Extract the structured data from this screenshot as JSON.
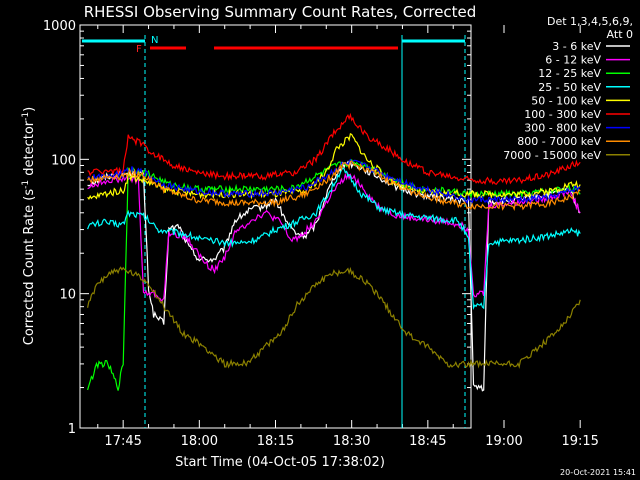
{
  "chart_data": {
    "type": "line",
    "title": "RHESSI Observing Summary Count Rates, Corrected",
    "xlabel": "Start Time (04-Oct-05 17:38:02)",
    "ylabel_main": "Corrected Count Rate (s",
    "ylabel_sup1": "-1",
    "ylabel_mid": " detector",
    "ylabel_sup2": "-1",
    "ylabel_end": ")",
    "yscale": "log",
    "ylim": [
      1,
      1000
    ],
    "xlim_minutes": [
      -8.5,
      68.5
    ],
    "x_ticks": [
      {
        "label": "17:45",
        "min": 0
      },
      {
        "label": "18:00",
        "min": 15
      },
      {
        "label": "18:15",
        "min": 30
      },
      {
        "label": "18:30",
        "min": 45
      },
      {
        "label": "18:45",
        "min": 60
      },
      {
        "label": "19:00",
        "min": 75
      },
      {
        "label": "19:15",
        "min": 90
      }
    ],
    "y_ticks": [
      {
        "label": "1",
        "value": 1
      },
      {
        "label": "10",
        "value": 10
      },
      {
        "label": "100",
        "value": 100
      },
      {
        "label": "1000",
        "value": 1000
      }
    ],
    "legend_header": [
      "Det 1,3,4,5,6,9,",
      "Att 0"
    ],
    "series": [
      {
        "name": "3 - 6 keV",
        "color": "#ffffff",
        "points": [
          [
            -7,
            65
          ],
          [
            -3,
            75
          ],
          [
            0,
            78
          ],
          [
            4,
            78
          ],
          [
            5,
            11
          ],
          [
            6,
            7
          ],
          [
            8,
            6
          ],
          [
            9,
            30
          ],
          [
            11,
            32
          ],
          [
            13,
            22
          ],
          [
            15,
            18
          ],
          [
            18,
            18
          ],
          [
            20,
            22
          ],
          [
            22,
            35
          ],
          [
            25,
            42
          ],
          [
            28,
            45
          ],
          [
            30,
            50
          ],
          [
            32,
            35
          ],
          [
            34,
            28
          ],
          [
            36,
            27
          ],
          [
            38,
            33
          ],
          [
            40,
            55
          ],
          [
            42,
            80
          ],
          [
            44,
            95
          ],
          [
            46,
            90
          ],
          [
            50,
            75
          ],
          [
            54,
            62
          ],
          [
            58,
            55
          ],
          [
            62,
            52
          ],
          [
            66,
            50
          ],
          [
            68,
            48
          ],
          [
            69,
            2
          ],
          [
            71,
            2
          ],
          [
            72,
            48
          ],
          [
            78,
            50
          ],
          [
            84,
            55
          ],
          [
            88,
            60
          ],
          [
            90,
            40
          ]
        ]
      },
      {
        "name": "6 - 12 keV",
        "color": "#ff00ff",
        "points": [
          [
            -7,
            62
          ],
          [
            -3,
            70
          ],
          [
            0,
            72
          ],
          [
            3,
            70
          ],
          [
            4,
            10
          ],
          [
            6,
            10
          ],
          [
            8,
            9
          ],
          [
            9,
            28
          ],
          [
            12,
            27
          ],
          [
            14,
            22
          ],
          [
            16,
            17
          ],
          [
            18,
            15
          ],
          [
            20,
            19
          ],
          [
            22,
            28
          ],
          [
            25,
            35
          ],
          [
            28,
            40
          ],
          [
            31,
            34
          ],
          [
            33,
            25
          ],
          [
            35,
            27
          ],
          [
            38,
            35
          ],
          [
            41,
            55
          ],
          [
            44,
            75
          ],
          [
            46,
            70
          ],
          [
            50,
            45
          ],
          [
            54,
            38
          ],
          [
            58,
            36
          ],
          [
            62,
            35
          ],
          [
            66,
            33
          ],
          [
            68,
            30
          ],
          [
            69,
            10
          ],
          [
            71,
            10
          ],
          [
            72,
            45
          ],
          [
            78,
            48
          ],
          [
            84,
            52
          ],
          [
            88,
            58
          ],
          [
            90,
            40
          ]
        ]
      },
      {
        "name": "12 - 25 keV",
        "color": "#00ff00",
        "points": [
          [
            -7,
            2
          ],
          [
            -5,
            3
          ],
          [
            -3,
            3
          ],
          [
            -1,
            2
          ],
          [
            0,
            3
          ],
          [
            1,
            85
          ],
          [
            5,
            78
          ],
          [
            9,
            65
          ],
          [
            15,
            60
          ],
          [
            25,
            60
          ],
          [
            33,
            60
          ],
          [
            38,
            75
          ],
          [
            42,
            90
          ],
          [
            45,
            95
          ],
          [
            48,
            90
          ],
          [
            52,
            75
          ],
          [
            58,
            60
          ],
          [
            64,
            58
          ],
          [
            68,
            55
          ],
          [
            72,
            55
          ],
          [
            78,
            55
          ],
          [
            84,
            58
          ],
          [
            88,
            62
          ],
          [
            90,
            55
          ]
        ]
      },
      {
        "name": "25 - 50 keV",
        "color": "#00ffff",
        "points": [
          [
            -7,
            32
          ],
          [
            -4,
            34
          ],
          [
            -1,
            33
          ],
          [
            0,
            33
          ],
          [
            1,
            40
          ],
          [
            4,
            38
          ],
          [
            7,
            30
          ],
          [
            12,
            28
          ],
          [
            16,
            25
          ],
          [
            20,
            24
          ],
          [
            24,
            24
          ],
          [
            27,
            26
          ],
          [
            30,
            30
          ],
          [
            34,
            34
          ],
          [
            38,
            40
          ],
          [
            41,
            60
          ],
          [
            43,
            85
          ],
          [
            45,
            70
          ],
          [
            47,
            55
          ],
          [
            51,
            42
          ],
          [
            56,
            38
          ],
          [
            62,
            36
          ],
          [
            66,
            35
          ],
          [
            68,
            25
          ],
          [
            69,
            8
          ],
          [
            71,
            8
          ],
          [
            72,
            24
          ],
          [
            78,
            25
          ],
          [
            84,
            27
          ],
          [
            88,
            29
          ],
          [
            90,
            28
          ]
        ]
      },
      {
        "name": "50 - 100 keV",
        "color": "#ffff00",
        "points": [
          [
            -7,
            50
          ],
          [
            -4,
            55
          ],
          [
            -1,
            58
          ],
          [
            0,
            58
          ],
          [
            1,
            75
          ],
          [
            4,
            70
          ],
          [
            8,
            60
          ],
          [
            14,
            55
          ],
          [
            22,
            55
          ],
          [
            30,
            55
          ],
          [
            36,
            58
          ],
          [
            40,
            80
          ],
          [
            42,
            120
          ],
          [
            44,
            140
          ],
          [
            45,
            150
          ],
          [
            46,
            130
          ],
          [
            48,
            100
          ],
          [
            50,
            85
          ],
          [
            54,
            65
          ],
          [
            58,
            58
          ],
          [
            64,
            56
          ],
          [
            68,
            55
          ],
          [
            72,
            55
          ],
          [
            78,
            55
          ],
          [
            84,
            58
          ],
          [
            88,
            65
          ],
          [
            90,
            65
          ]
        ]
      },
      {
        "name": "100 - 300 keV",
        "color": "#ff0000",
        "points": [
          [
            -7,
            80
          ],
          [
            -4,
            82
          ],
          [
            -1,
            82
          ],
          [
            0,
            82
          ],
          [
            1,
            145
          ],
          [
            3,
            135
          ],
          [
            6,
            110
          ],
          [
            10,
            90
          ],
          [
            14,
            80
          ],
          [
            20,
            75
          ],
          [
            28,
            75
          ],
          [
            34,
            80
          ],
          [
            38,
            100
          ],
          [
            41,
            150
          ],
          [
            44,
            200
          ],
          [
            45,
            205
          ],
          [
            46,
            180
          ],
          [
            48,
            150
          ],
          [
            52,
            120
          ],
          [
            56,
            95
          ],
          [
            60,
            80
          ],
          [
            66,
            72
          ],
          [
            70,
            70
          ],
          [
            74,
            68
          ],
          [
            78,
            70
          ],
          [
            84,
            78
          ],
          [
            88,
            90
          ],
          [
            90,
            95
          ]
        ]
      },
      {
        "name": "300 - 800 keV",
        "color": "#0000ff",
        "points": [
          [
            -7,
            72
          ],
          [
            -4,
            75
          ],
          [
            -1,
            78
          ],
          [
            0,
            78
          ],
          [
            1,
            85
          ],
          [
            4,
            80
          ],
          [
            8,
            65
          ],
          [
            14,
            58
          ],
          [
            22,
            55
          ],
          [
            30,
            56
          ],
          [
            36,
            62
          ],
          [
            40,
            75
          ],
          [
            43,
            90
          ],
          [
            45,
            95
          ],
          [
            48,
            88
          ],
          [
            52,
            75
          ],
          [
            58,
            62
          ],
          [
            64,
            55
          ],
          [
            68,
            50
          ],
          [
            72,
            50
          ],
          [
            78,
            50
          ],
          [
            84,
            52
          ],
          [
            88,
            58
          ],
          [
            90,
            62
          ]
        ]
      },
      {
        "name": "800 - 7000 keV",
        "color": "#ff8c00",
        "points": [
          [
            -7,
            70
          ],
          [
            -4,
            73
          ],
          [
            -1,
            75
          ],
          [
            0,
            75
          ],
          [
            1,
            80
          ],
          [
            4,
            76
          ],
          [
            8,
            60
          ],
          [
            14,
            50
          ],
          [
            22,
            47
          ],
          [
            30,
            48
          ],
          [
            36,
            55
          ],
          [
            40,
            70
          ],
          [
            43,
            88
          ],
          [
            45,
            92
          ],
          [
            48,
            85
          ],
          [
            52,
            70
          ],
          [
            58,
            55
          ],
          [
            64,
            48
          ],
          [
            68,
            45
          ],
          [
            72,
            45
          ],
          [
            78,
            45
          ],
          [
            84,
            47
          ],
          [
            88,
            52
          ],
          [
            90,
            58
          ]
        ]
      },
      {
        "name": "7000 - 15000 keV",
        "color": "#8b8000",
        "points": [
          [
            -7,
            8
          ],
          [
            -5,
            12
          ],
          [
            -3,
            14
          ],
          [
            -1,
            15
          ],
          [
            0,
            15
          ],
          [
            2,
            14
          ],
          [
            5,
            12
          ],
          [
            8,
            8
          ],
          [
            12,
            5
          ],
          [
            16,
            4
          ],
          [
            20,
            3
          ],
          [
            24,
            3
          ],
          [
            28,
            4
          ],
          [
            31,
            5
          ],
          [
            34,
            8
          ],
          [
            38,
            12
          ],
          [
            41,
            14
          ],
          [
            44,
            15
          ],
          [
            47,
            13
          ],
          [
            50,
            10
          ],
          [
            53,
            7
          ],
          [
            56,
            5
          ],
          [
            60,
            4
          ],
          [
            64,
            3
          ],
          [
            68,
            3
          ],
          [
            72,
            3
          ],
          [
            78,
            3
          ],
          [
            82,
            4
          ],
          [
            85,
            5
          ],
          [
            88,
            7
          ],
          [
            90,
            9
          ]
        ]
      }
    ],
    "annotations": {
      "flare_label": "F",
      "night_label": "N",
      "attenuator": "Att 0",
      "timestamp": "20-Oct-2021 15:41"
    }
  }
}
